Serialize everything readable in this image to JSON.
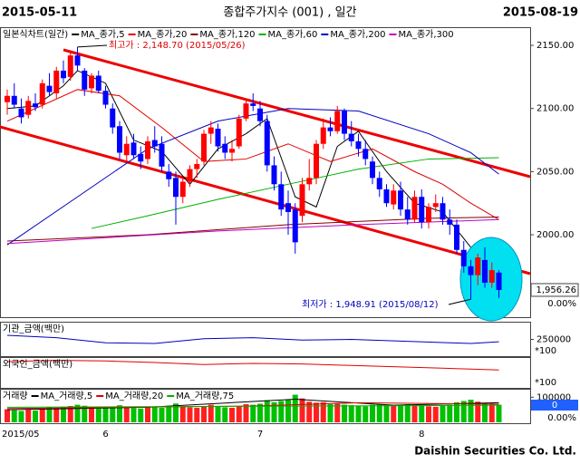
{
  "header": {
    "start": "2015-05-11",
    "title": "종합주가지수 (001) , 일간",
    "end": "2015-08-19"
  },
  "footer": "Daishin Securities Co. Ltd.",
  "chart_data": [
    {
      "type": "candlestick",
      "title": "일본식차트(일간)",
      "categories": [
        "2015/05",
        null,
        null,
        null,
        null,
        null,
        null,
        null,
        null,
        null,
        null,
        null,
        null,
        null,
        "6",
        null,
        null,
        null,
        null,
        null,
        null,
        null,
        null,
        null,
        null,
        null,
        null,
        null,
        null,
        null,
        null,
        null,
        null,
        null,
        null,
        null,
        "7",
        null,
        null,
        null,
        null,
        null,
        null,
        null,
        null,
        null,
        null,
        null,
        null,
        null,
        null,
        null,
        null,
        null,
        null,
        null,
        null,
        null,
        null,
        "8",
        null,
        null,
        null,
        null,
        null,
        null,
        null,
        null,
        null,
        null,
        null
      ],
      "open": [
        2105,
        2110,
        2100,
        2095,
        2104,
        2103,
        2118,
        2112,
        2130,
        2125,
        2142,
        2130,
        2116,
        2126,
        2114,
        2100,
        2086,
        2063,
        2073,
        2064,
        2060,
        2075,
        2072,
        2050,
        2045,
        2030,
        2042,
        2052,
        2058,
        2080,
        2084,
        2072,
        2065,
        2070,
        2092,
        2104,
        2100,
        2090,
        2055,
        2040,
        2025,
        2020,
        2015,
        2040,
        2045,
        2072,
        2085,
        2082,
        2098,
        2080,
        2074,
        2068,
        2058,
        2045,
        2036,
        2024,
        2035,
        2020,
        2012,
        2030,
        2010,
        2022,
        2025,
        2012,
        2008,
        1988,
        1975,
        1968,
        1980,
        1962,
        1970
      ],
      "high": [
        2115,
        2120,
        2108,
        2110,
        2112,
        2123,
        2128,
        2133,
        2138,
        2145,
        2148.7,
        2132,
        2128,
        2130,
        2118,
        2104,
        2090,
        2078,
        2080,
        2070,
        2078,
        2086,
        2078,
        2056,
        2050,
        2045,
        2055,
        2060,
        2083,
        2090,
        2088,
        2078,
        2075,
        2095,
        2108,
        2112,
        2106,
        2095,
        2062,
        2050,
        2035,
        2025,
        2045,
        2060,
        2075,
        2092,
        2093,
        2102,
        2100,
        2090,
        2080,
        2075,
        2062,
        2050,
        2040,
        2040,
        2042,
        2030,
        2035,
        2036,
        2025,
        2032,
        2030,
        2020,
        2012,
        1995,
        1980,
        1985,
        1990,
        1978,
        1972
      ],
      "low": [
        2095,
        2100,
        2088,
        2092,
        2098,
        2100,
        2110,
        2108,
        2120,
        2122,
        2130,
        2110,
        2112,
        2112,
        2100,
        2080,
        2060,
        2058,
        2060,
        2052,
        2056,
        2065,
        2050,
        2038,
        2008,
        2025,
        2038,
        2045,
        2055,
        2072,
        2066,
        2060,
        2058,
        2068,
        2090,
        2098,
        2086,
        2050,
        2035,
        2015,
        2000,
        1985,
        2010,
        2035,
        2040,
        2068,
        2078,
        2080,
        2075,
        2070,
        2062,
        2055,
        2040,
        2030,
        2022,
        2020,
        2015,
        2008,
        2010,
        2005,
        2005,
        2018,
        2008,
        2000,
        1985,
        1970,
        1948.91,
        1960,
        1958,
        1958,
        1950
      ],
      "close": [
        2110,
        2103,
        2093,
        2106,
        2101,
        2120,
        2113,
        2130,
        2124,
        2142,
        2134,
        2115,
        2126,
        2114,
        2103,
        2085,
        2065,
        2072,
        2063,
        2058,
        2074,
        2070,
        2054,
        2044,
        2030,
        2042,
        2052,
        2056,
        2080,
        2085,
        2070,
        2065,
        2068,
        2092,
        2104,
        2102,
        2090,
        2055,
        2040,
        2020,
        2018,
        1994,
        2040,
        2045,
        2072,
        2085,
        2082,
        2098,
        2080,
        2074,
        2068,
        2060,
        2045,
        2036,
        2025,
        2035,
        2020,
        2012,
        2030,
        2010,
        2022,
        2025,
        2012,
        2008,
        1988,
        1975,
        1968,
        1982,
        1962,
        1972,
        1956.26
      ],
      "up_color": "#ff0000",
      "down_color": "#0000ff",
      "series": [
        {
          "name": "MA_종가,5",
          "color": "#000000",
          "x": [
            0,
            4,
            8,
            10,
            14,
            18,
            22,
            26,
            30,
            34,
            37,
            41,
            44,
            47,
            50,
            54,
            58,
            62,
            66,
            70
          ],
          "values": [
            2100,
            2102,
            2118,
            2130,
            2120,
            2075,
            2066,
            2040,
            2068,
            2080,
            2092,
            2030,
            2022,
            2070,
            2082,
            2050,
            2025,
            2018,
            1990,
            1968
          ]
        },
        {
          "name": "MA_종가,20",
          "color": "#e00000",
          "x": [
            0,
            10,
            16,
            22,
            28,
            34,
            40,
            46,
            52,
            58,
            62,
            66,
            70
          ],
          "values": [
            2090,
            2115,
            2110,
            2085,
            2058,
            2060,
            2072,
            2058,
            2068,
            2050,
            2040,
            2025,
            2012
          ]
        },
        {
          "name": "MA_종가,120",
          "color": "#800000",
          "x": [
            0,
            20,
            40,
            60,
            70
          ],
          "values": [
            1995,
            2000,
            2008,
            2013,
            2014
          ]
        },
        {
          "name": "MA_종가,60",
          "color": "#00b000",
          "x": [
            12,
            20,
            30,
            40,
            50,
            60,
            70
          ],
          "values": [
            2005,
            2015,
            2028,
            2040,
            2052,
            2060,
            2061
          ]
        },
        {
          "name": "MA_종가,200",
          "color": "#0000c0",
          "x": [
            0,
            10,
            20,
            30,
            40,
            50,
            60,
            66,
            70
          ],
          "values": [
            1992,
            2030,
            2068,
            2090,
            2100,
            2098,
            2080,
            2065,
            2048
          ]
        },
        {
          "name": "MA_종가,300",
          "color": "#c000c0",
          "x": [
            0,
            30,
            50,
            70
          ],
          "values": [
            1993,
            2003,
            2008,
            2012
          ]
        }
      ],
      "ylim": [
        1934.7,
        2164.4
      ],
      "yticks": [
        {
          "value": 2000,
          "label": "2000.00"
        },
        {
          "value": 2050,
          "label": "2050.00"
        },
        {
          "value": 2100,
          "label": "2100.00"
        },
        {
          "value": 2150,
          "label": "2150.00"
        }
      ],
      "last_label": "1,956.26",
      "change_label": "0.00%",
      "high_note": "최고가 : 2,148.70 (2015/05/26)",
      "low_note": "최저가 : 1,948.91 (2015/08/12)"
    },
    {
      "type": "line",
      "title": "기관_금액(백만)",
      "unit_label": "*100",
      "color": "#0000c0",
      "x": [
        0,
        7,
        14,
        21,
        28,
        35,
        42,
        49,
        56,
        63,
        66,
        70
      ],
      "values": [
        262000,
        255000,
        240000,
        238000,
        252000,
        255000,
        248000,
        250000,
        245000,
        240000,
        238000,
        243000
      ],
      "ylim": [
        200000,
        300000
      ],
      "yticks": [
        250000
      ]
    },
    {
      "type": "line",
      "title": "외국인_금액(백만)",
      "unit_label": "*100",
      "color": "#e00000",
      "x": [
        0,
        7,
        14,
        21,
        28,
        35,
        42,
        49,
        56,
        63,
        70
      ],
      "values": [
        88,
        92,
        90,
        85,
        78,
        82,
        80,
        75,
        70,
        65,
        60
      ],
      "ylim": [
        0,
        100
      ],
      "yticks": []
    },
    {
      "type": "bar",
      "title": "거래량",
      "up_color": "#ff2020",
      "down_color": "#00c000",
      "values": [
        52000,
        48000,
        45000,
        50000,
        47000,
        55000,
        60000,
        58000,
        62000,
        65000,
        70000,
        66000,
        60000,
        55000,
        58000,
        62000,
        68000,
        60000,
        57000,
        55000,
        60000,
        62000,
        58000,
        66000,
        75000,
        64000,
        60000,
        58000,
        65000,
        70000,
        62000,
        60000,
        58000,
        64000,
        72000,
        70000,
        74000,
        88000,
        80000,
        85000,
        90000,
        110000,
        95000,
        82000,
        78000,
        80000,
        72000,
        75000,
        70000,
        68000,
        66000,
        64000,
        70000,
        72000,
        68000,
        66000,
        70000,
        72000,
        68000,
        66000,
        64000,
        62000,
        68000,
        70000,
        80000,
        85000,
        90000,
        82000,
        78000,
        75000,
        70000
      ],
      "series": [
        {
          "name": "MA_거래량,5",
          "color": "#000000",
          "x": [
            0,
            20,
            41,
            55,
            70
          ],
          "values": [
            50000,
            60000,
            92000,
            68000,
            78000
          ]
        },
        {
          "name": "MA_거래량,20",
          "color": "#e00000",
          "x": [
            0,
            35,
            50,
            70
          ],
          "values": [
            55000,
            65000,
            78000,
            72000
          ]
        },
        {
          "name": "MA_거래량,75",
          "color": "#00b000",
          "x": [
            0,
            70
          ],
          "values": [
            60000,
            68000
          ]
        }
      ],
      "ylim": [
        0,
        130000
      ],
      "yticks": [
        100000
      ],
      "last_label": "0",
      "change_label": "0.00%"
    }
  ]
}
